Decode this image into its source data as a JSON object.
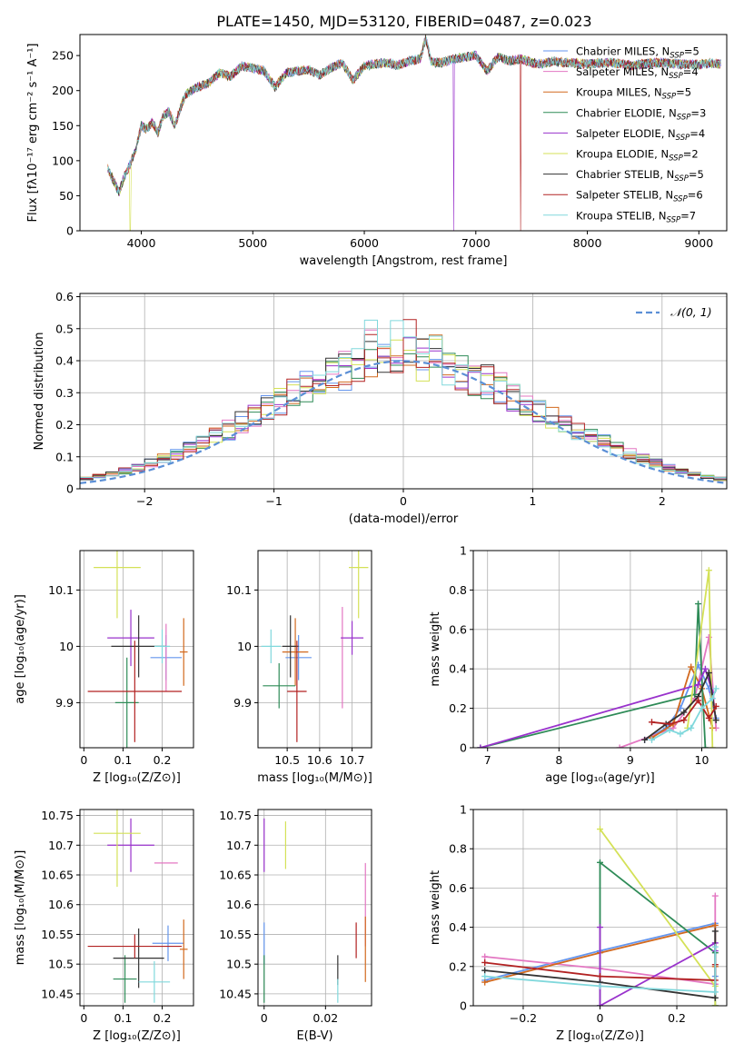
{
  "figure": {
    "title": "PLATE=1450, MJD=53120, FIBERID=0487, z=0.023"
  },
  "chart_data": [
    {
      "id": "spectrum",
      "type": "line",
      "xlabel": "wavelength [Angstrom, rest frame]",
      "ylabel": "Flux [fλ10⁻¹⁷ erg cm⁻² s⁻¹ A⁻¹]",
      "xlim": [
        3450,
        9250
      ],
      "ylim": [
        0,
        280
      ],
      "xticks": [
        4000,
        5000,
        6000,
        7000,
        8000,
        9000
      ],
      "yticks": [
        0,
        50,
        100,
        150,
        200,
        250
      ],
      "grid": false,
      "legend_position": "top-right",
      "envelope": {
        "x": [
          3700,
          3750,
          3800,
          3850,
          3900,
          3950,
          4000,
          4050,
          4100,
          4150,
          4200,
          4250,
          4300,
          4350,
          4400,
          4500,
          4600,
          4700,
          4800,
          4900,
          5000,
          5100,
          5200,
          5300,
          5400,
          5500,
          5600,
          5700,
          5800,
          5900,
          6000,
          6100,
          6200,
          6300,
          6400,
          6500,
          6550,
          6600,
          6700,
          6800,
          6900,
          7000,
          7100,
          7200,
          7300,
          7400,
          7500,
          7600,
          7700,
          7800,
          8000,
          8200,
          8400,
          8600,
          8800,
          9000,
          9100,
          9200
        ],
        "y": [
          88,
          72,
          55,
          78,
          95,
          115,
          150,
          145,
          155,
          140,
          165,
          170,
          150,
          175,
          195,
          205,
          210,
          225,
          220,
          235,
          232,
          228,
          205,
          225,
          228,
          230,
          222,
          232,
          240,
          215,
          235,
          238,
          240,
          236,
          242,
          245,
          275,
          240,
          240,
          245,
          248,
          250,
          228,
          248,
          242,
          245,
          240,
          238,
          242,
          240,
          238,
          240,
          236,
          240,
          238,
          237,
          239,
          238
        ]
      },
      "dropouts": [
        {
          "series": "Kroupa ELODIE",
          "x": 3900
        },
        {
          "series": "Salpeter ELODIE",
          "x": 6800
        },
        {
          "series": "Salpeter STELIB",
          "x": 7400
        }
      ]
    },
    {
      "id": "residuals",
      "type": "histogram",
      "xlabel": "(data-model)/error",
      "ylabel": "Normed distribution",
      "xlim": [
        -2.5,
        2.5
      ],
      "ylim": [
        0,
        0.61
      ],
      "xticks": [
        -2,
        -1,
        0,
        1,
        2
      ],
      "yticks": [
        0.0,
        0.1,
        0.2,
        0.3,
        0.4,
        0.5,
        0.6
      ],
      "grid": true,
      "legend_position": "top-right",
      "reference_label": "𝒩(0, 1)",
      "bin_width": 0.1
    },
    {
      "id": "age-vs-Z",
      "type": "scatter",
      "xlabel": "Z [log₁₀(Z/Z⊙)]",
      "ylabel": "age  [log₁₀(age/yr)]",
      "xlim": [
        -0.01,
        0.28
      ],
      "ylim": [
        9.82,
        10.17
      ],
      "xticks": [
        0.0,
        0.1,
        0.2
      ],
      "yticks": [
        9.9,
        10.0,
        10.1
      ],
      "grid": true,
      "points": [
        {
          "x": 0.21,
          "y": 9.98,
          "xerr": 0.04,
          "yerr": 0.04
        },
        {
          "x": 0.21,
          "y": 9.98,
          "xerr": 0.0,
          "yerr": 0.06
        },
        {
          "x": 0.255,
          "y": 9.99,
          "xerr": 0.01,
          "yerr": 0.06
        },
        {
          "x": 0.11,
          "y": 9.9,
          "xerr": 0.03,
          "yerr": 0.08
        },
        {
          "x": 0.12,
          "y": 10.015,
          "xerr": 0.06,
          "yerr": 0.05
        },
        {
          "x": 0.085,
          "y": 10.14,
          "xerr": 0.06,
          "yerr": 0.09
        },
        {
          "x": 0.14,
          "y": 10.0,
          "xerr": 0.07,
          "yerr": 0.055
        },
        {
          "x": 0.13,
          "y": 9.92,
          "xerr": 0.12,
          "yerr": 0.09
        },
        {
          "x": 0.2,
          "y": 10.0,
          "xerr": 0.02,
          "yerr": 0.03
        }
      ]
    },
    {
      "id": "age-vs-mass",
      "type": "scatter",
      "xlabel": "mass [log₁₀(M/M⊙)]",
      "ylabel": "",
      "xlim": [
        10.41,
        10.76
      ],
      "ylim": [
        9.82,
        10.17
      ],
      "xticks": [
        10.5,
        10.6,
        10.7
      ],
      "yticks": [
        9.9,
        10.0,
        10.1
      ],
      "grid": true,
      "points": [
        {
          "x": 10.535,
          "y": 9.98,
          "xerr": 0.04,
          "yerr": 0.04
        },
        {
          "x": 10.67,
          "y": 9.98,
          "xerr": 0.0,
          "yerr": 0.09
        },
        {
          "x": 10.525,
          "y": 9.99,
          "xerr": 0.04,
          "yerr": 0.06
        },
        {
          "x": 10.475,
          "y": 9.93,
          "xerr": 0.05,
          "yerr": 0.04
        },
        {
          "x": 10.7,
          "y": 10.015,
          "xerr": 0.035,
          "yerr": 0.03
        },
        {
          "x": 10.72,
          "y": 10.14,
          "xerr": 0.03,
          "yerr": 0.09
        },
        {
          "x": 10.51,
          "y": 10.0,
          "xerr": 0.025,
          "yerr": 0.055
        },
        {
          "x": 10.53,
          "y": 9.92,
          "xerr": 0.03,
          "yerr": 0.09
        },
        {
          "x": 10.45,
          "y": 10.0,
          "xerr": 0.03,
          "yerr": 0.03
        }
      ]
    },
    {
      "id": "massweight-vs-age",
      "type": "line",
      "xlabel": "age  [log₁₀(age/yr)]",
      "ylabel": "mass weight",
      "xlim": [
        6.8,
        10.35
      ],
      "ylim": [
        0,
        1.0
      ],
      "xticks": [
        7,
        8,
        9,
        10
      ],
      "yticks": [
        0.0,
        0.2,
        0.4,
        0.6,
        0.8,
        1.0
      ],
      "grid": true,
      "series": [
        {
          "name": "Chabrier MILES",
          "x": [
            9.2,
            9.5,
            9.7,
            9.95,
            10.1,
            10.2
          ],
          "y": [
            0.04,
            0.1,
            0.2,
            0.42,
            0.3,
            0.15
          ]
        },
        {
          "name": "Salpeter MILES",
          "x": [
            8.85,
            9.6,
            9.9,
            10.1,
            10.2
          ],
          "y": [
            0.0,
            0.1,
            0.25,
            0.56,
            0.1
          ]
        },
        {
          "name": "Kroupa MILES",
          "x": [
            9.3,
            9.6,
            9.85,
            10.0,
            10.15
          ],
          "y": [
            0.05,
            0.12,
            0.41,
            0.3,
            0.1
          ]
        },
        {
          "name": "Chabrier ELODIE",
          "x": [
            6.9,
            9.9,
            9.95,
            10.05
          ],
          "y": [
            0.0,
            0.27,
            0.73,
            0.0
          ]
        },
        {
          "name": "Salpeter ELODIE",
          "x": [
            6.9,
            9.95,
            10.05,
            10.15
          ],
          "y": [
            0.0,
            0.32,
            0.4,
            0.28
          ]
        },
        {
          "name": "Kroupa ELODIE",
          "x": [
            9.8,
            10.1,
            10.15
          ],
          "y": [
            0.1,
            0.9,
            0.0
          ]
        },
        {
          "name": "Chabrier STELIB",
          "x": [
            9.2,
            9.5,
            9.75,
            9.95,
            10.1,
            10.2
          ],
          "y": [
            0.04,
            0.12,
            0.18,
            0.26,
            0.38,
            0.14
          ]
        },
        {
          "name": "Salpeter STELIB",
          "x": [
            9.3,
            9.55,
            9.75,
            9.95,
            10.1,
            10.2
          ],
          "y": [
            0.13,
            0.12,
            0.14,
            0.24,
            0.15,
            0.21
          ]
        },
        {
          "name": "Kroupa STELIB",
          "x": [
            9.3,
            9.55,
            9.7,
            9.85,
            10.0,
            10.15,
            10.2
          ],
          "y": [
            0.04,
            0.09,
            0.07,
            0.1,
            0.2,
            0.25,
            0.3
          ]
        }
      ]
    },
    {
      "id": "mass-vs-Z",
      "type": "scatter",
      "xlabel": "Z [log₁₀(Z/Z⊙)]",
      "ylabel": "mass [log₁₀(M/M⊙)]",
      "xlim": [
        -0.01,
        0.28
      ],
      "ylim": [
        10.43,
        10.76
      ],
      "xticks": [
        0.0,
        0.1,
        0.2
      ],
      "yticks": [
        10.45,
        10.5,
        10.55,
        10.6,
        10.65,
        10.7,
        10.75
      ],
      "grid": true,
      "points": [
        {
          "x": 0.215,
          "y": 10.535,
          "xerr": 0.04,
          "yerr": 0.03
        },
        {
          "x": 0.21,
          "y": 10.67,
          "xerr": 0.03,
          "yerr": 0.0
        },
        {
          "x": 0.255,
          "y": 10.525,
          "xerr": 0.01,
          "yerr": 0.05
        },
        {
          "x": 0.105,
          "y": 10.475,
          "xerr": 0.03,
          "yerr": 0.04
        },
        {
          "x": 0.12,
          "y": 10.7,
          "xerr": 0.06,
          "yerr": 0.045
        },
        {
          "x": 0.085,
          "y": 10.72,
          "xerr": 0.06,
          "yerr": 0.09
        },
        {
          "x": 0.14,
          "y": 10.51,
          "xerr": 0.065,
          "yerr": 0.05
        },
        {
          "x": 0.13,
          "y": 10.53,
          "xerr": 0.12,
          "yerr": 0.02
        },
        {
          "x": 0.18,
          "y": 10.47,
          "xerr": 0.04,
          "yerr": 0.035
        }
      ]
    },
    {
      "id": "mass-vs-ebv",
      "type": "scatter",
      "xlabel": "E(B-V)",
      "ylabel": "",
      "xlim": [
        -0.002,
        0.035
      ],
      "ylim": [
        10.43,
        10.76
      ],
      "xticks": [
        0.0,
        0.02
      ],
      "yticks": [
        10.45,
        10.5,
        10.55,
        10.6,
        10.65,
        10.7,
        10.75
      ],
      "grid": true,
      "points": [
        {
          "x": 0.0,
          "y": 10.535,
          "xerr": 0.0,
          "yerr": 0.035
        },
        {
          "x": 0.033,
          "y": 10.6,
          "xerr": 0.0,
          "yerr": 0.07
        },
        {
          "x": 0.033,
          "y": 10.525,
          "xerr": 0.0,
          "yerr": 0.055
        },
        {
          "x": 0.0,
          "y": 10.475,
          "xerr": 0.0,
          "yerr": 0.04
        },
        {
          "x": 0.0,
          "y": 10.7,
          "xerr": 0.0,
          "yerr": 0.045
        },
        {
          "x": 0.007,
          "y": 10.7,
          "xerr": 0.0,
          "yerr": 0.04
        },
        {
          "x": 0.024,
          "y": 10.49,
          "xerr": 0.0,
          "yerr": 0.025
        },
        {
          "x": 0.03,
          "y": 10.54,
          "xerr": 0.0,
          "yerr": 0.03
        },
        {
          "x": 0.024,
          "y": 10.455,
          "xerr": 0.0,
          "yerr": 0.02
        }
      ]
    },
    {
      "id": "massweight-vs-Z",
      "type": "line",
      "xlabel": "Z [log₁₀(Z/Z⊙)]",
      "ylabel": "mass weight",
      "xlim": [
        -0.33,
        0.33
      ],
      "ylim": [
        0,
        1.0
      ],
      "xticks": [
        -0.2,
        0.0,
        0.2
      ],
      "yticks": [
        0.0,
        0.2,
        0.4,
        0.6,
        0.8,
        1.0
      ],
      "grid": true,
      "series": [
        {
          "name": "Chabrier MILES",
          "x": [
            -0.3,
            0.0,
            0.3,
            0.3
          ],
          "y": [
            0.13,
            0.28,
            0.42,
            0.15
          ]
        },
        {
          "name": "Salpeter MILES",
          "x": [
            -0.3,
            0.0,
            0.3,
            0.3
          ],
          "y": [
            0.25,
            0.19,
            0.11,
            0.56
          ]
        },
        {
          "name": "Kroupa MILES",
          "x": [
            -0.3,
            0.0,
            0.3,
            0.3
          ],
          "y": [
            0.12,
            0.27,
            0.41,
            0.2
          ]
        },
        {
          "name": "Chabrier ELODIE",
          "x": [
            0.0,
            0.0,
            0.3,
            0.3
          ],
          "y": [
            0.0,
            0.73,
            0.27,
            0.0
          ]
        },
        {
          "name": "Salpeter ELODIE",
          "x": [
            0.0,
            0.0,
            0.3,
            0.3
          ],
          "y": [
            0.4,
            0.0,
            0.32,
            0.28
          ]
        },
        {
          "name": "Kroupa ELODIE",
          "x": [
            0.0,
            0.3,
            0.3
          ],
          "y": [
            0.9,
            0.1,
            0.0
          ]
        },
        {
          "name": "Chabrier STELIB",
          "x": [
            -0.3,
            0.0,
            0.3,
            0.3
          ],
          "y": [
            0.18,
            0.12,
            0.04,
            0.38
          ]
        },
        {
          "name": "Salpeter STELIB",
          "x": [
            -0.3,
            0.0,
            0.3,
            0.3
          ],
          "y": [
            0.22,
            0.15,
            0.13,
            0.21
          ]
        },
        {
          "name": "Kroupa STELIB",
          "x": [
            -0.3,
            0.0,
            0.3,
            0.3
          ],
          "y": [
            0.15,
            0.1,
            0.07,
            0.3
          ]
        }
      ]
    }
  ],
  "legend": [
    {
      "model": "Chabrier MILES",
      "nssp": "5",
      "color": "#6495ed"
    },
    {
      "model": "Salpeter MILES",
      "nssp": "4",
      "color": "#e377c2"
    },
    {
      "model": "Kroupa MILES",
      "nssp": "5",
      "color": "#d2691e"
    },
    {
      "model": "Chabrier ELODIE",
      "nssp": "3",
      "color": "#2e8b57"
    },
    {
      "model": "Salpeter ELODIE",
      "nssp": "4",
      "color": "#9932cc"
    },
    {
      "model": "Kroupa ELODIE",
      "nssp": "2",
      "color": "#d4e157"
    },
    {
      "model": "Chabrier STELIB",
      "nssp": "5",
      "color": "#333333"
    },
    {
      "model": "Salpeter STELIB",
      "nssp": "6",
      "color": "#b22222"
    },
    {
      "model": "Kroupa STELIB",
      "nssp": "7",
      "color": "#80d8dc"
    }
  ],
  "legend_suffix": "N",
  "legend_subscript": "SSP",
  "reference_color": "#5b8fd6"
}
